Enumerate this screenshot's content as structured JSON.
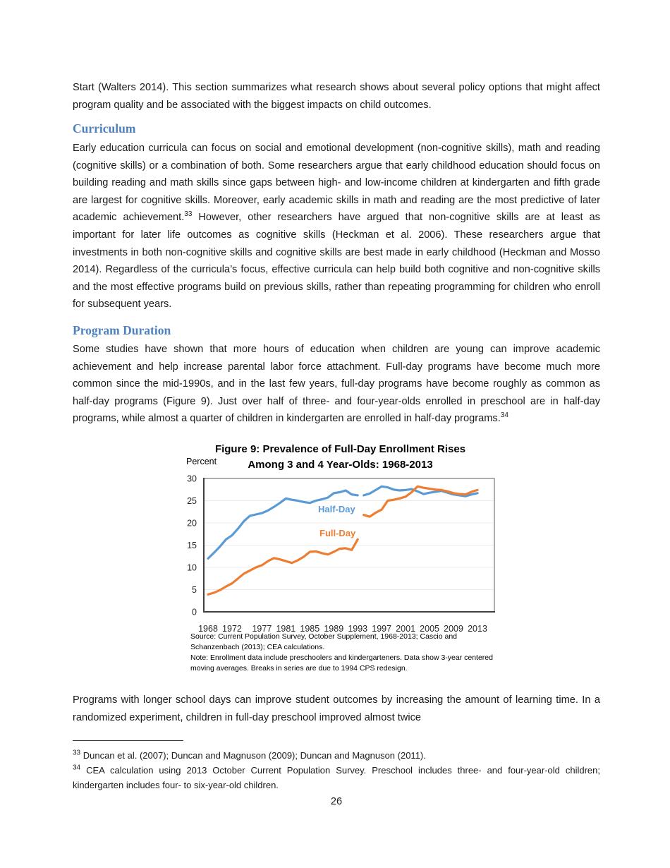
{
  "page_number": "26",
  "body": {
    "intro": "Start (Walters 2014). This section summarizes what research shows about several policy options that might affect program quality and be associated with the biggest impacts on child outcomes.",
    "curriculum_heading": "Curriculum",
    "curriculum_part1": "Early education curricula can focus on social and emotional development (non-cognitive skills), math and reading (cognitive skills) or a combination of both. Some researchers argue that early childhood education should focus on building reading and math skills since gaps between high- and low-income children at kindergarten and fifth grade are largest for cognitive skills. Moreover, early academic skills in math and reading are the most predictive of later academic achievement.",
    "curriculum_footnote_ref": "33",
    "curriculum_part2": " However, other researchers have argued that non-cognitive skills are at least as important for later life outcomes as cognitive skills (Heckman et al. 2006). These researchers argue that investments in both non-cognitive skills and cognitive skills are best made in early childhood (Heckman and Mosso 2014). Regardless of the curricula’s focus, effective curricula can help build both cognitive and non-cognitive skills and the most effective programs build on previous skills, rather than repeating programming for children who enroll for subsequent years.",
    "program_heading": "Program Duration",
    "program_part1": "Some studies have shown that more hours of education when children are young can improve academic achievement and help increase parental labor force attachment. Full-day programs have become much more common since the mid-1990s, and in the last few years, full-day programs have become roughly as common as half-day programs (Figure 9). Just over half of three- and four-year-olds enrolled in preschool are in half-day programs, while almost a quarter of children in kindergarten are enrolled in half-day programs.",
    "program_footnote_ref": "34",
    "longer_days": "Programs with longer school days can improve student outcomes by increasing the amount of learning time. In a randomized experiment, children in full-day preschool improved almost twice"
  },
  "figure": {
    "source": "Source: Current Population Survey, October Supplement, 1968-2013; Cascio and Schanzenbach (2013); CEA calculations.",
    "note": "Note: Enrollment data include preschoolers and kindergarteners. Data show 3-year centered moving averages. Breaks in series are due to 1994 CPS redesign."
  },
  "chart_data": {
    "type": "line",
    "title": "Figure 9: Prevalence of Full-Day Enrollment Rises",
    "subtitle": "Among 3 and 4 Year-Olds: 1968-2013",
    "ylabel": "Percent",
    "ylim": [
      0,
      30
    ],
    "yticks": [
      0,
      5,
      10,
      15,
      20,
      25,
      30
    ],
    "xticks": [
      1968,
      1972,
      1977,
      1981,
      1985,
      1989,
      1993,
      1997,
      2001,
      2005,
      2009,
      2013
    ],
    "x_range": [
      1968,
      2013
    ],
    "grid": true,
    "legend_position": "inline-labels",
    "break_note": "Breaks in series are due to 1994 CPS redesign",
    "series": [
      {
        "name": "Half-Day",
        "color": "#5B9BD5",
        "segments": [
          {
            "start_year": 1968,
            "values": [
              12.0,
              13.3,
              14.7,
              16.3,
              17.2,
              18.7,
              20.4,
              21.6,
              21.9,
              22.2,
              22.8,
              23.6,
              24.5,
              25.5,
              25.2,
              25.0,
              24.7,
              24.5,
              25.0,
              25.3,
              25.7,
              26.7,
              26.9,
              27.3,
              26.4,
              26.2
            ]
          },
          {
            "start_year": 1994,
            "values": [
              26.2,
              26.6,
              27.4,
              28.2,
              28.0,
              27.5,
              27.3,
              27.4,
              27.6,
              27.1,
              26.5,
              26.8,
              27.0,
              27.2,
              26.8,
              26.4,
              26.2,
              26.0,
              26.4,
              26.7
            ]
          }
        ]
      },
      {
        "name": "Full-Day",
        "color": "#ED7D31",
        "segments": [
          {
            "start_year": 1968,
            "values": [
              3.9,
              4.3,
              4.9,
              5.7,
              6.4,
              7.5,
              8.6,
              9.3,
              10.0,
              10.5,
              11.4,
              12.1,
              11.8,
              11.4,
              11.0,
              11.6,
              12.4,
              13.5,
              13.6,
              13.2,
              12.9,
              13.5,
              14.2,
              14.3,
              13.9,
              16.3
            ]
          },
          {
            "start_year": 1994,
            "values": [
              21.8,
              21.4,
              22.3,
              23.0,
              25.0,
              25.2,
              25.5,
              25.9,
              26.9,
              28.2,
              27.9,
              27.7,
              27.5,
              27.4,
              27.1,
              26.7,
              26.5,
              26.4,
              27.0,
              27.4
            ]
          }
        ]
      }
    ]
  },
  "footnotes": [
    {
      "marker": "33",
      "text": " Duncan et al. (2007); Duncan and Magnuson (2009); Duncan and Magnuson (2011)."
    },
    {
      "marker": "34",
      "text": " CEA calculation using 2013 October Current Population Survey. Preschool includes three- and four-year-old children; kindergarten includes four- to six-year-old children."
    }
  ]
}
